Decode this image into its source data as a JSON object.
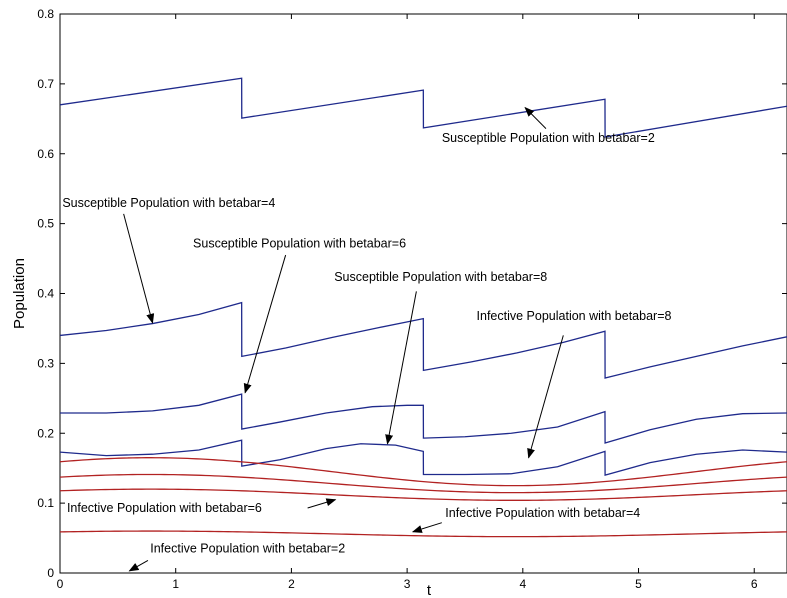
{
  "chart_data": {
    "type": "line",
    "xlabel": "t",
    "ylabel": "Population",
    "xlim": [
      0,
      6.2832
    ],
    "ylim": [
      0,
      0.8
    ],
    "xticks": [
      "0",
      "1",
      "2",
      "3",
      "4",
      "5",
      "6"
    ],
    "yticks": [
      "0",
      "0.1",
      "0.2",
      "0.3",
      "0.4",
      "0.5",
      "0.6",
      "0.7",
      "0.8"
    ],
    "grid": false,
    "colors": {
      "susceptible": "#1f2a8c",
      "infective": "#b22222",
      "axis": "#000000"
    },
    "series": [
      {
        "group": "susceptible",
        "points": [
          [
            0,
            0.67
          ],
          [
            1.57,
            0.708
          ],
          [
            1.571,
            0.651
          ],
          [
            3.14,
            0.691
          ],
          [
            3.141,
            0.637
          ],
          [
            4.71,
            0.678
          ],
          [
            4.711,
            0.624
          ],
          [
            6.2832,
            0.668
          ]
        ]
      },
      {
        "group": "susceptible",
        "points": [
          [
            0,
            0.34
          ],
          [
            0.4,
            0.347
          ],
          [
            0.8,
            0.357
          ],
          [
            1.2,
            0.37
          ],
          [
            1.57,
            0.387
          ],
          [
            1.571,
            0.31
          ],
          [
            1.95,
            0.322
          ],
          [
            2.35,
            0.337
          ],
          [
            2.75,
            0.351
          ],
          [
            3.14,
            0.364
          ],
          [
            3.141,
            0.29
          ],
          [
            3.55,
            0.302
          ],
          [
            3.95,
            0.315
          ],
          [
            4.35,
            0.33
          ],
          [
            4.71,
            0.346
          ],
          [
            4.711,
            0.279
          ],
          [
            5.1,
            0.295
          ],
          [
            5.5,
            0.31
          ],
          [
            5.9,
            0.325
          ],
          [
            6.2832,
            0.338
          ]
        ]
      },
      {
        "group": "susceptible",
        "points": [
          [
            0,
            0.229
          ],
          [
            0.4,
            0.229
          ],
          [
            0.8,
            0.232
          ],
          [
            1.2,
            0.24
          ],
          [
            1.57,
            0.256
          ],
          [
            1.571,
            0.206
          ],
          [
            1.9,
            0.216
          ],
          [
            2.3,
            0.229
          ],
          [
            2.7,
            0.238
          ],
          [
            3.0,
            0.24
          ],
          [
            3.14,
            0.24
          ],
          [
            3.141,
            0.193
          ],
          [
            3.5,
            0.195
          ],
          [
            3.9,
            0.2
          ],
          [
            4.3,
            0.209
          ],
          [
            4.71,
            0.231
          ],
          [
            4.711,
            0.186
          ],
          [
            5.1,
            0.205
          ],
          [
            5.5,
            0.22
          ],
          [
            5.9,
            0.228
          ],
          [
            6.2832,
            0.229
          ]
        ]
      },
      {
        "group": "susceptible",
        "points": [
          [
            0,
            0.173
          ],
          [
            0.4,
            0.168
          ],
          [
            0.8,
            0.17
          ],
          [
            1.2,
            0.176
          ],
          [
            1.57,
            0.19
          ],
          [
            1.571,
            0.153
          ],
          [
            1.9,
            0.162
          ],
          [
            2.3,
            0.178
          ],
          [
            2.6,
            0.185
          ],
          [
            2.9,
            0.183
          ],
          [
            3.14,
            0.174
          ],
          [
            3.141,
            0.141
          ],
          [
            3.5,
            0.141
          ],
          [
            3.9,
            0.142
          ],
          [
            4.3,
            0.152
          ],
          [
            4.71,
            0.174
          ],
          [
            4.711,
            0.14
          ],
          [
            5.1,
            0.158
          ],
          [
            5.5,
            0.17
          ],
          [
            5.9,
            0.176
          ],
          [
            6.2832,
            0.173
          ]
        ]
      },
      {
        "group": "infective",
        "fn": {
          "c": 0.145,
          "a": 0.02,
          "phase": 0.79,
          "period": 6.2832
        }
      },
      {
        "group": "infective",
        "fn": {
          "c": 0.128,
          "a": 0.013,
          "phase": 0.79,
          "period": 6.2832
        }
      },
      {
        "group": "infective",
        "fn": {
          "c": 0.112,
          "a": 0.008,
          "phase": 0.79,
          "period": 6.2832
        }
      },
      {
        "group": "infective",
        "fn": {
          "c": 0.056,
          "a": 0.004,
          "phase": 0.79,
          "period": 6.2832
        }
      }
    ],
    "annotations": [
      {
        "text": "Susceptible Population with betabar=2",
        "label_at": [
          3.3,
          0.617
        ],
        "arrow_tail": [
          4.2,
          0.636
        ],
        "arrow_head": [
          4.02,
          0.666
        ]
      },
      {
        "text": "Susceptible Population with betabar=4",
        "label_at": [
          0.02,
          0.524
        ],
        "arrow_tail": [
          0.55,
          0.514
        ],
        "arrow_head": [
          0.8,
          0.358
        ]
      },
      {
        "text": "Susceptible Population with betabar=6",
        "label_at": [
          1.15,
          0.466
        ],
        "arrow_tail": [
          1.95,
          0.455
        ],
        "arrow_head": [
          1.6,
          0.258
        ]
      },
      {
        "text": "Susceptible Population with betabar=8",
        "label_at": [
          2.37,
          0.418
        ],
        "arrow_tail": [
          3.08,
          0.403
        ],
        "arrow_head": [
          2.83,
          0.185
        ]
      },
      {
        "text": "Infective Population with betabar=8",
        "label_at": [
          3.6,
          0.362
        ],
        "arrow_tail": [
          4.35,
          0.34
        ],
        "arrow_head": [
          4.05,
          0.165
        ]
      },
      {
        "text": "Infective Population with betabar=6",
        "label_at": [
          0.06,
          0.087
        ],
        "arrow_tail": [
          2.14,
          0.093
        ],
        "arrow_head": [
          2.38,
          0.105
        ]
      },
      {
        "text": "Infective Population with betabar=4",
        "label_at": [
          3.33,
          0.08
        ],
        "arrow_tail": [
          3.3,
          0.072
        ],
        "arrow_head": [
          3.05,
          0.059
        ]
      },
      {
        "text": "Infective Population with betabar=2",
        "label_at": [
          0.78,
          0.029
        ],
        "arrow_tail": [
          0.76,
          0.018
        ],
        "arrow_head": [
          0.6,
          0.003
        ]
      }
    ]
  }
}
